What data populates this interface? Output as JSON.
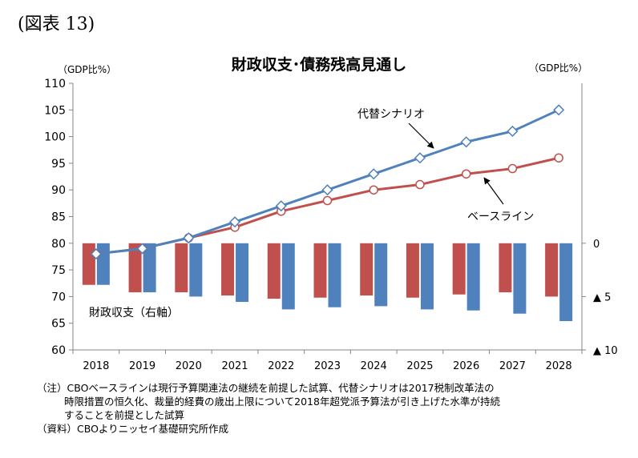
{
  "figure_label": "(図表 13)",
  "notes": {
    "note_lines": [
      "（注）CBOベースラインは現行予算関連法の継続を前提した試算、代替シナリオは2017税制改革法の",
      "時限措置の恒久化、裁量的経費の歳出上限について2018年超党派予算法が引き上げた水準が持続",
      "することを前提とした試算"
    ],
    "source": "（資料）CBOよりニッセイ基礎研究所作成"
  },
  "chart_data": {
    "type": "line",
    "title": "財政収支･債務残高見通し",
    "left_unit": "（GDP比%）",
    "right_unit": "（GDP比%）",
    "categories": [
      "2018",
      "2019",
      "2020",
      "2021",
      "2022",
      "2023",
      "2024",
      "2025",
      "2026",
      "2027",
      "2028"
    ],
    "ylim": [
      60,
      110
    ],
    "yticks": [
      60,
      65,
      70,
      75,
      80,
      85,
      90,
      95,
      100,
      105,
      110
    ],
    "y2_labels": [
      "0",
      "▲ 5",
      "▲ 10"
    ],
    "grid": false,
    "series": [
      {
        "name": "代替シナリオ",
        "kind": "line",
        "color": "#4f81bd",
        "marker": "diamond",
        "values": [
          78,
          79,
          81,
          84,
          87,
          90,
          93,
          96,
          99,
          101,
          105
        ]
      },
      {
        "name": "ベースライン",
        "kind": "line",
        "color": "#c0504d",
        "marker": "circle",
        "values": [
          78,
          79,
          81,
          83,
          86,
          88,
          90,
          91,
          93,
          94,
          96
        ]
      }
    ],
    "bar_series": [
      {
        "name": "ベースライン",
        "color": "#c0504d",
        "values": [
          -3.9,
          -4.6,
          -4.6,
          -4.9,
          -5.2,
          -5.1,
          -4.9,
          -5.1,
          -4.8,
          -4.6,
          -5.0
        ]
      },
      {
        "name": "代替シナリオ",
        "color": "#4f81bd",
        "values": [
          -3.9,
          -4.6,
          -5.0,
          -5.5,
          -6.2,
          -6.0,
          -5.9,
          -6.2,
          -6.3,
          -6.6,
          -7.3
        ]
      }
    ],
    "bar_axis_label": "財政収支（右軸）"
  }
}
